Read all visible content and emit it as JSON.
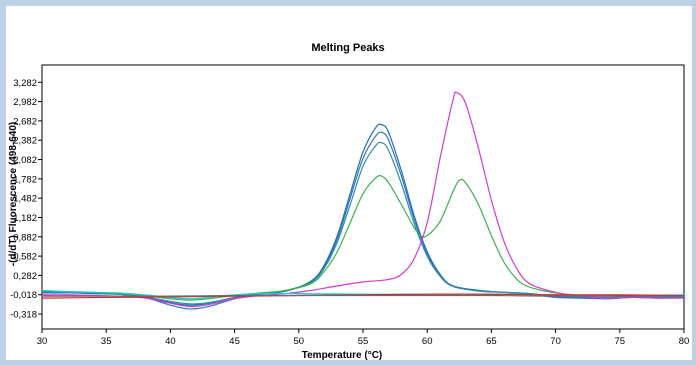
{
  "chart_data": {
    "type": "line",
    "title": "Melting Peaks",
    "xlabel": "Temperature (°C)",
    "ylabel": "-(d/dT) Fluorescence (498-640)",
    "xlim": [
      30,
      80
    ],
    "ylim": [
      -0.55,
      3.55
    ],
    "x_ticks": [
      30,
      35,
      40,
      45,
      50,
      55,
      60,
      65,
      70,
      75,
      80
    ],
    "x_tick_labels": [
      "30",
      "35",
      "40",
      "45",
      "50",
      "55",
      "60",
      "65",
      "70",
      "75",
      "80"
    ],
    "y_ticks": [
      3.282,
      2.982,
      2.682,
      2.382,
      2.082,
      1.782,
      1.482,
      1.182,
      0.882,
      0.582,
      0.282,
      -0.018,
      -0.318
    ],
    "y_tick_labels": [
      "3,282",
      "2,982",
      "2,682",
      "2,382",
      "2,082",
      "1,782",
      "1,482",
      "1,182",
      "0,882",
      "0,582",
      "0,282",
      "-0,018",
      "-0,318"
    ],
    "grid": false,
    "legend": "none",
    "series": [
      {
        "color": "#1a6fb3",
        "points": [
          [
            30,
            0.01
          ],
          [
            32,
            0.01
          ],
          [
            34,
            0.0
          ],
          [
            36,
            -0.01
          ],
          [
            38,
            -0.05
          ],
          [
            40,
            -0.14
          ],
          [
            41.5,
            -0.18
          ],
          [
            43,
            -0.15
          ],
          [
            45,
            -0.06
          ],
          [
            47,
            0.0
          ],
          [
            49,
            0.04
          ],
          [
            51,
            0.2
          ],
          [
            52,
            0.45
          ],
          [
            53,
            0.9
          ],
          [
            54,
            1.55
          ],
          [
            55,
            2.2
          ],
          [
            56,
            2.58
          ],
          [
            56.5,
            2.62
          ],
          [
            57,
            2.5
          ],
          [
            58,
            1.9
          ],
          [
            59,
            1.2
          ],
          [
            60,
            0.65
          ],
          [
            61,
            0.3
          ],
          [
            62,
            0.12
          ],
          [
            64,
            0.05
          ],
          [
            66,
            0.02
          ],
          [
            68,
            0.0
          ],
          [
            70,
            -0.05
          ],
          [
            72,
            -0.06
          ],
          [
            74,
            -0.07
          ],
          [
            76,
            -0.05
          ],
          [
            78,
            -0.06
          ],
          [
            80,
            -0.06
          ]
        ]
      },
      {
        "color": "#3b6fc4",
        "points": [
          [
            30,
            0.02
          ],
          [
            32,
            0.01
          ],
          [
            34,
            0.01
          ],
          [
            36,
            -0.01
          ],
          [
            38,
            -0.06
          ],
          [
            40,
            -0.18
          ],
          [
            41.5,
            -0.24
          ],
          [
            43,
            -0.2
          ],
          [
            45,
            -0.08
          ],
          [
            47,
            -0.01
          ],
          [
            49,
            0.04
          ],
          [
            51,
            0.18
          ],
          [
            52,
            0.42
          ],
          [
            53,
            0.85
          ],
          [
            54,
            1.48
          ],
          [
            55,
            2.1
          ],
          [
            56,
            2.45
          ],
          [
            56.5,
            2.5
          ],
          [
            57,
            2.38
          ],
          [
            58,
            1.82
          ],
          [
            59,
            1.15
          ],
          [
            60,
            0.62
          ],
          [
            61,
            0.28
          ],
          [
            62,
            0.12
          ],
          [
            64,
            0.04
          ],
          [
            66,
            0.02
          ],
          [
            68,
            -0.01
          ],
          [
            70,
            -0.06
          ],
          [
            72,
            -0.07
          ],
          [
            74,
            -0.08
          ],
          [
            76,
            -0.06
          ],
          [
            78,
            -0.07
          ],
          [
            80,
            -0.06
          ]
        ]
      },
      {
        "color": "#2a8fa0",
        "points": [
          [
            30,
            0.03
          ],
          [
            32,
            0.02
          ],
          [
            34,
            0.01
          ],
          [
            36,
            0.0
          ],
          [
            38,
            -0.05
          ],
          [
            40,
            -0.12
          ],
          [
            41.5,
            -0.16
          ],
          [
            43,
            -0.14
          ],
          [
            45,
            -0.06
          ],
          [
            47,
            0.0
          ],
          [
            49,
            0.05
          ],
          [
            51,
            0.18
          ],
          [
            52,
            0.4
          ],
          [
            53,
            0.8
          ],
          [
            54,
            1.38
          ],
          [
            55,
            1.98
          ],
          [
            56,
            2.3
          ],
          [
            56.5,
            2.34
          ],
          [
            57,
            2.22
          ],
          [
            58,
            1.7
          ],
          [
            59,
            1.08
          ],
          [
            60,
            0.58
          ],
          [
            61,
            0.27
          ],
          [
            62,
            0.11
          ],
          [
            64,
            0.04
          ],
          [
            66,
            0.02
          ],
          [
            68,
            0.0
          ],
          [
            70,
            -0.04
          ],
          [
            72,
            -0.05
          ],
          [
            74,
            -0.06
          ],
          [
            76,
            -0.04
          ],
          [
            78,
            -0.05
          ],
          [
            80,
            -0.05
          ]
        ]
      },
      {
        "color": "#3cb34a",
        "points": [
          [
            30,
            0.04
          ],
          [
            32,
            0.03
          ],
          [
            34,
            0.02
          ],
          [
            36,
            0.0
          ],
          [
            38,
            -0.03
          ],
          [
            40,
            -0.08
          ],
          [
            41.5,
            -0.1
          ],
          [
            43,
            -0.08
          ],
          [
            45,
            -0.03
          ],
          [
            47,
            0.01
          ],
          [
            49,
            0.05
          ],
          [
            51,
            0.16
          ],
          [
            52,
            0.35
          ],
          [
            53,
            0.65
          ],
          [
            54,
            1.1
          ],
          [
            55,
            1.55
          ],
          [
            56,
            1.8
          ],
          [
            56.5,
            1.82
          ],
          [
            57,
            1.72
          ],
          [
            58,
            1.38
          ],
          [
            59,
            1.02
          ],
          [
            59.5,
            0.9
          ],
          [
            60,
            0.9
          ],
          [
            61,
            1.12
          ],
          [
            62,
            1.58
          ],
          [
            62.5,
            1.76
          ],
          [
            63,
            1.72
          ],
          [
            64,
            1.38
          ],
          [
            65,
            0.9
          ],
          [
            66,
            0.48
          ],
          [
            67,
            0.22
          ],
          [
            68,
            0.1
          ],
          [
            70,
            0.01
          ],
          [
            72,
            -0.03
          ],
          [
            74,
            -0.04
          ],
          [
            76,
            -0.03
          ],
          [
            78,
            -0.04
          ],
          [
            80,
            -0.04
          ]
        ]
      },
      {
        "color": "#d23ad2",
        "points": [
          [
            30,
            -0.02
          ],
          [
            32,
            -0.02
          ],
          [
            34,
            -0.03
          ],
          [
            36,
            -0.04
          ],
          [
            38,
            -0.07
          ],
          [
            40,
            -0.15
          ],
          [
            41.5,
            -0.2
          ],
          [
            43,
            -0.17
          ],
          [
            45,
            -0.08
          ],
          [
            47,
            -0.03
          ],
          [
            49,
            0.0
          ],
          [
            51,
            0.05
          ],
          [
            53,
            0.12
          ],
          [
            55,
            0.18
          ],
          [
            57,
            0.22
          ],
          [
            58,
            0.3
          ],
          [
            59,
            0.55
          ],
          [
            60,
            1.1
          ],
          [
            61,
            2.1
          ],
          [
            62,
            3.0
          ],
          [
            62.3,
            3.12
          ],
          [
            63,
            2.95
          ],
          [
            64,
            2.25
          ],
          [
            65,
            1.45
          ],
          [
            66,
            0.8
          ],
          [
            67,
            0.38
          ],
          [
            68,
            0.15
          ],
          [
            70,
            0.02
          ],
          [
            72,
            -0.04
          ],
          [
            74,
            -0.07
          ],
          [
            76,
            -0.06
          ],
          [
            78,
            -0.07
          ],
          [
            80,
            -0.07
          ]
        ]
      },
      {
        "color": "#20c8d8",
        "points": [
          [
            30,
            0.05
          ],
          [
            32,
            0.03
          ],
          [
            34,
            0.02
          ],
          [
            36,
            0.01
          ],
          [
            38,
            -0.02
          ],
          [
            40,
            -0.06
          ],
          [
            41.5,
            -0.08
          ],
          [
            43,
            -0.06
          ],
          [
            45,
            -0.02
          ],
          [
            47,
            0.0
          ],
          [
            50,
            0.0
          ],
          [
            55,
            -0.01
          ],
          [
            60,
            -0.01
          ],
          [
            65,
            -0.01
          ],
          [
            70,
            -0.02
          ],
          [
            75,
            -0.03
          ],
          [
            80,
            -0.02
          ]
        ]
      },
      {
        "color": "#d22a2a",
        "points": [
          [
            30,
            -0.07
          ],
          [
            35,
            -0.06
          ],
          [
            40,
            -0.05
          ],
          [
            45,
            -0.04
          ],
          [
            50,
            -0.03
          ],
          [
            55,
            -0.02
          ],
          [
            60,
            -0.01
          ],
          [
            65,
            -0.01
          ],
          [
            70,
            -0.02
          ],
          [
            75,
            -0.02
          ],
          [
            80,
            -0.03
          ]
        ]
      },
      {
        "color": "#6a6a6a",
        "points": [
          [
            30,
            -0.04
          ],
          [
            35,
            -0.04
          ],
          [
            40,
            -0.04
          ],
          [
            45,
            -0.03
          ],
          [
            50,
            -0.03
          ],
          [
            55,
            -0.03
          ],
          [
            60,
            -0.03
          ],
          [
            65,
            -0.03
          ],
          [
            70,
            -0.04
          ],
          [
            75,
            -0.04
          ],
          [
            80,
            -0.04
          ]
        ]
      }
    ]
  }
}
